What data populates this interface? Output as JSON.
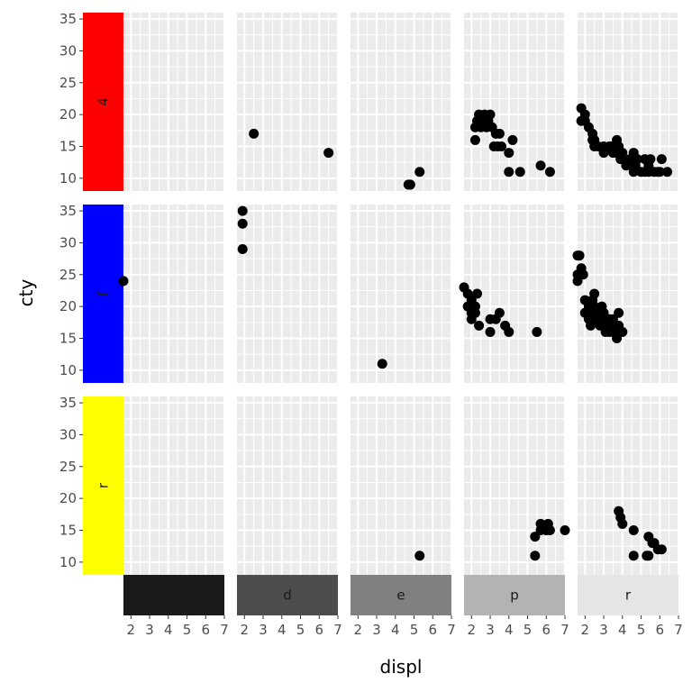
{
  "chart_data": {
    "type": "scatter",
    "xlabel": "displ",
    "ylabel": "cty",
    "xlim": [
      1.6,
      7.0
    ],
    "ylim": [
      8,
      36
    ],
    "x_ticks": [
      2,
      3,
      4,
      5,
      6,
      7
    ],
    "y_ticks": [
      10,
      15,
      20,
      25,
      30,
      35
    ],
    "grid": true,
    "columns": [
      {
        "label": "",
        "fill": "#1a1a1a",
        "text_color": "#ffffff"
      },
      {
        "label": "d",
        "fill": "#4d4d4d",
        "text_color": "#1a1a1a"
      },
      {
        "label": "e",
        "fill": "#808080",
        "text_color": "#1a1a1a"
      },
      {
        "label": "p",
        "fill": "#b3b3b3",
        "text_color": "#1a1a1a"
      },
      {
        "label": "r",
        "fill": "#e5e5e5",
        "text_color": "#1a1a1a"
      }
    ],
    "rows": [
      {
        "label": "4",
        "fill": "#ff0000"
      },
      {
        "label": "f",
        "fill": "#0000ff"
      },
      {
        "label": "r",
        "fill": "#ffff00"
      }
    ],
    "panels": [
      {
        "row": 0,
        "col": 1,
        "points": [
          [
            2.5,
            17
          ],
          [
            6.5,
            14
          ]
        ]
      },
      {
        "row": 0,
        "col": 2,
        "points": [
          [
            4.7,
            9
          ],
          [
            4.8,
            9
          ],
          [
            5.3,
            11
          ]
        ]
      },
      {
        "row": 0,
        "col": 3,
        "points": [
          [
            2.2,
            16
          ],
          [
            2.2,
            18
          ],
          [
            2.3,
            19
          ],
          [
            2.4,
            20
          ],
          [
            2.5,
            18
          ],
          [
            2.6,
            19
          ],
          [
            2.7,
            20
          ],
          [
            2.8,
            18
          ],
          [
            2.9,
            19
          ],
          [
            3.0,
            20
          ],
          [
            3.1,
            18
          ],
          [
            3.2,
            15
          ],
          [
            3.3,
            17
          ],
          [
            3.4,
            15
          ],
          [
            3.5,
            17
          ],
          [
            3.6,
            15
          ],
          [
            4.0,
            14
          ],
          [
            4.2,
            16
          ],
          [
            4.0,
            11
          ],
          [
            4.6,
            11
          ],
          [
            5.7,
            12
          ],
          [
            6.2,
            11
          ]
        ]
      },
      {
        "row": 0,
        "col": 4,
        "points": [
          [
            1.8,
            21
          ],
          [
            1.8,
            19
          ],
          [
            2.0,
            20
          ],
          [
            2.2,
            18
          ],
          [
            2.0,
            19
          ],
          [
            2.4,
            17
          ],
          [
            2.4,
            16
          ],
          [
            2.5,
            15
          ],
          [
            2.5,
            16
          ],
          [
            2.7,
            15
          ],
          [
            3.0,
            14
          ],
          [
            3.0,
            15
          ],
          [
            3.3,
            15
          ],
          [
            3.4,
            15
          ],
          [
            3.5,
            14
          ],
          [
            3.7,
            16
          ],
          [
            3.7,
            14
          ],
          [
            3.8,
            15
          ],
          [
            3.9,
            13
          ],
          [
            4.0,
            14
          ],
          [
            4.2,
            12
          ],
          [
            4.4,
            13
          ],
          [
            4.6,
            11
          ],
          [
            4.6,
            14
          ],
          [
            4.7,
            12
          ],
          [
            4.8,
            13
          ],
          [
            5.0,
            11
          ],
          [
            5.2,
            13
          ],
          [
            5.2,
            11
          ],
          [
            5.4,
            12
          ],
          [
            5.4,
            11
          ],
          [
            5.5,
            13
          ],
          [
            5.7,
            11
          ],
          [
            5.9,
            11
          ],
          [
            6.0,
            11
          ],
          [
            6.1,
            13
          ],
          [
            6.4,
            11
          ]
        ]
      },
      {
        "row": 1,
        "col": 0,
        "points": [
          [
            1.6,
            24
          ]
        ]
      },
      {
        "row": 1,
        "col": 1,
        "points": [
          [
            1.9,
            35
          ],
          [
            1.9,
            33
          ],
          [
            1.9,
            29
          ]
        ]
      },
      {
        "row": 1,
        "col": 2,
        "points": [
          [
            3.3,
            11
          ]
        ]
      },
      {
        "row": 1,
        "col": 3,
        "points": [
          [
            1.6,
            23
          ],
          [
            1.8,
            22
          ],
          [
            1.8,
            20
          ],
          [
            2.0,
            19
          ],
          [
            2.0,
            18
          ],
          [
            2.0,
            21
          ],
          [
            2.2,
            20
          ],
          [
            2.2,
            19
          ],
          [
            2.3,
            22
          ],
          [
            2.4,
            17
          ],
          [
            3.0,
            18
          ],
          [
            3.3,
            18
          ],
          [
            3.5,
            19
          ],
          [
            3.8,
            17
          ],
          [
            3.0,
            16
          ],
          [
            4.0,
            16
          ],
          [
            5.5,
            16
          ]
        ]
      },
      {
        "row": 1,
        "col": 4,
        "points": [
          [
            1.6,
            28
          ],
          [
            1.7,
            28
          ],
          [
            1.8,
            26
          ],
          [
            1.9,
            25
          ],
          [
            1.6,
            25
          ],
          [
            1.6,
            24
          ],
          [
            2.0,
            21
          ],
          [
            2.0,
            19
          ],
          [
            2.2,
            20
          ],
          [
            2.2,
            18
          ],
          [
            2.4,
            21
          ],
          [
            2.4,
            19
          ],
          [
            2.5,
            20
          ],
          [
            2.5,
            22
          ],
          [
            2.6,
            18
          ],
          [
            2.7,
            19
          ],
          [
            2.8,
            17
          ],
          [
            2.9,
            20
          ],
          [
            3.0,
            17
          ],
          [
            3.0,
            19
          ],
          [
            3.1,
            18
          ],
          [
            3.2,
            17
          ],
          [
            3.3,
            16
          ],
          [
            3.3,
            18
          ],
          [
            3.4,
            17
          ],
          [
            3.5,
            18
          ],
          [
            3.5,
            16
          ],
          [
            3.6,
            17
          ],
          [
            3.7,
            15
          ],
          [
            3.8,
            17
          ],
          [
            3.8,
            19
          ],
          [
            3.9,
            16
          ],
          [
            4.0,
            16
          ],
          [
            2.3,
            17
          ],
          [
            2.8,
            19
          ],
          [
            3.1,
            16
          ]
        ]
      },
      {
        "row": 2,
        "col": 2,
        "points": [
          [
            5.3,
            11
          ]
        ]
      },
      {
        "row": 2,
        "col": 3,
        "points": [
          [
            5.4,
            11
          ],
          [
            5.4,
            14
          ],
          [
            5.7,
            15
          ],
          [
            5.7,
            16
          ],
          [
            6.0,
            15
          ],
          [
            6.1,
            16
          ],
          [
            6.2,
            15
          ],
          [
            7.0,
            15
          ]
        ]
      },
      {
        "row": 2,
        "col": 4,
        "points": [
          [
            3.8,
            18
          ],
          [
            3.9,
            17
          ],
          [
            4.0,
            16
          ],
          [
            4.6,
            15
          ],
          [
            4.6,
            11
          ],
          [
            5.3,
            11
          ],
          [
            5.4,
            14
          ],
          [
            5.4,
            11
          ],
          [
            5.7,
            13
          ],
          [
            5.9,
            12
          ],
          [
            6.1,
            12
          ],
          [
            5.6,
            13
          ]
        ]
      }
    ]
  }
}
